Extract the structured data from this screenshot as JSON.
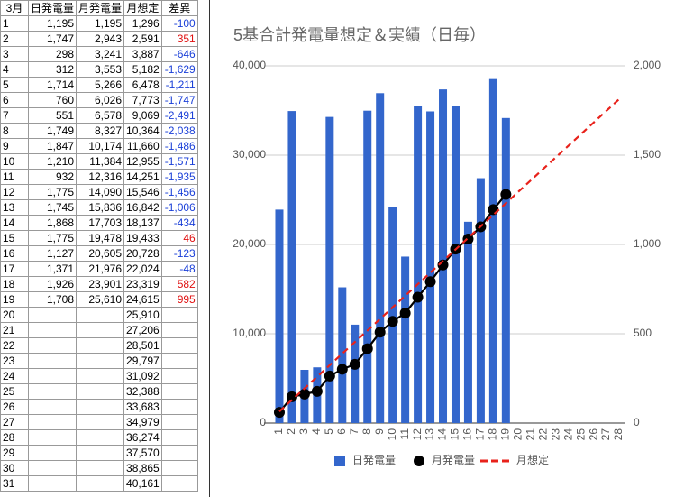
{
  "table": {
    "header": [
      "3月",
      "日発電量",
      "月発電量",
      "月想定",
      "差異"
    ],
    "rows": [
      [
        "1",
        "1,195",
        "1,195",
        "1,296",
        "-100"
      ],
      [
        "2",
        "1,747",
        "2,943",
        "2,591",
        "351"
      ],
      [
        "3",
        "298",
        "3,241",
        "3,887",
        "-646"
      ],
      [
        "4",
        "312",
        "3,553",
        "5,182",
        "-1,629"
      ],
      [
        "5",
        "1,714",
        "5,266",
        "6,478",
        "-1,211"
      ],
      [
        "6",
        "760",
        "6,026",
        "7,773",
        "-1,747"
      ],
      [
        "7",
        "551",
        "6,578",
        "9,069",
        "-2,491"
      ],
      [
        "8",
        "1,749",
        "8,327",
        "10,364",
        "-2,038"
      ],
      [
        "9",
        "1,847",
        "10,174",
        "11,660",
        "-1,486"
      ],
      [
        "10",
        "1,210",
        "11,384",
        "12,955",
        "-1,571"
      ],
      [
        "11",
        "932",
        "12,316",
        "14,251",
        "-1,935"
      ],
      [
        "12",
        "1,775",
        "14,090",
        "15,546",
        "-1,456"
      ],
      [
        "13",
        "1,745",
        "15,836",
        "16,842",
        "-1,006"
      ],
      [
        "14",
        "1,868",
        "17,703",
        "18,137",
        "-434"
      ],
      [
        "15",
        "1,775",
        "19,478",
        "19,433",
        "46"
      ],
      [
        "16",
        "1,127",
        "20,605",
        "20,728",
        "-123"
      ],
      [
        "17",
        "1,371",
        "21,976",
        "22,024",
        "-48"
      ],
      [
        "18",
        "1,926",
        "23,901",
        "23,319",
        "582"
      ],
      [
        "19",
        "1,708",
        "25,610",
        "24,615",
        "995"
      ],
      [
        "20",
        null,
        null,
        "25,910",
        null
      ],
      [
        "21",
        null,
        null,
        "27,206",
        null
      ],
      [
        "22",
        null,
        null,
        "28,501",
        null
      ],
      [
        "23",
        null,
        null,
        "29,797",
        null
      ],
      [
        "24",
        null,
        null,
        "31,092",
        null
      ],
      [
        "25",
        null,
        null,
        "32,388",
        null
      ],
      [
        "26",
        null,
        null,
        "33,683",
        null
      ],
      [
        "27",
        null,
        null,
        "34,979",
        null
      ],
      [
        "28",
        null,
        null,
        "36,274",
        null
      ],
      [
        "29",
        null,
        null,
        "37,570",
        null
      ],
      [
        "30",
        null,
        null,
        "38,865",
        null
      ],
      [
        "31",
        null,
        null,
        "40,161",
        null
      ]
    ]
  },
  "chart_data": {
    "type": "bar",
    "title": "5基合計発電量想定＆実績（日毎）",
    "categories": [
      "1",
      "2",
      "3",
      "4",
      "5",
      "6",
      "7",
      "8",
      "9",
      "10",
      "11",
      "12",
      "13",
      "14",
      "15",
      "16",
      "17",
      "18",
      "19",
      "20",
      "21",
      "22",
      "23",
      "24",
      "25",
      "26",
      "27",
      "28"
    ],
    "series": [
      {
        "name": "日発電量",
        "type": "bar",
        "axis": "y2",
        "color": "#3366cc",
        "values": [
          1195,
          1747,
          298,
          312,
          1714,
          760,
          551,
          1749,
          1847,
          1210,
          932,
          1775,
          1745,
          1868,
          1775,
          1127,
          1371,
          1926,
          1708,
          null,
          null,
          null,
          null,
          null,
          null,
          null,
          null,
          null
        ]
      },
      {
        "name": "月発電量",
        "type": "line",
        "color": "#000000",
        "marker": true,
        "values": [
          1195,
          2943,
          3241,
          3553,
          5266,
          6026,
          6578,
          8327,
          10174,
          11384,
          12316,
          14090,
          15836,
          17703,
          19478,
          20605,
          21976,
          23901,
          25610,
          null,
          null,
          null,
          null,
          null,
          null,
          null,
          null,
          null
        ]
      },
      {
        "name": "月想定",
        "type": "line",
        "color": "#e8221b",
        "dashed": true,
        "values": [
          1296,
          2591,
          3887,
          5182,
          6478,
          7773,
          9069,
          10364,
          11660,
          12955,
          14251,
          15546,
          16842,
          18137,
          19433,
          20728,
          22024,
          23319,
          24615,
          25910,
          27206,
          28501,
          29797,
          31092,
          32388,
          33683,
          34979,
          36274
        ]
      }
    ],
    "ylim": [
      0,
      40000
    ],
    "yticks": [
      0,
      {
        "value": 10000,
        "label": "10,000"
      },
      {
        "value": 20000,
        "label": "20,000"
      },
      {
        "value": 30000,
        "label": "30,000"
      },
      {
        "value": 40000,
        "label": "40,000"
      }
    ],
    "y2lim": [
      0,
      2000
    ],
    "y2ticks": [
      0,
      500,
      {
        "value": 1000,
        "label": "1,000"
      },
      {
        "value": 1500,
        "label": "1,500"
      },
      {
        "value": 2000,
        "label": "2,000"
      }
    ],
    "grid": true,
    "legend": "bottom"
  }
}
